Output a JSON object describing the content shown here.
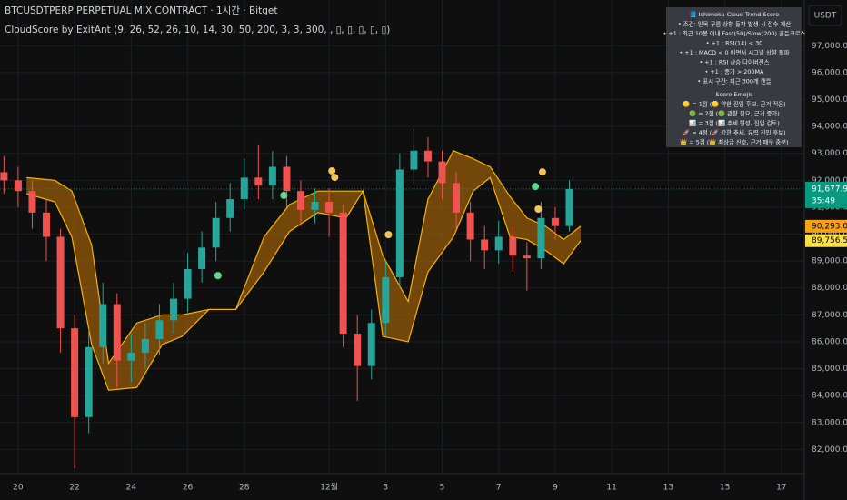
{
  "header": {
    "symbol_line": "BTCUSDTPERP PERPETUAL MIX CONTRACT · 1시간 · Bitget",
    "indicator_line": "CloudScore by ExitAnt (9, 26, 52, 26, 10, 14, 30, 50, 200, 3, 3, 300,  , ▯, ▯, ▯, ▯, ▯)"
  },
  "info_box": {
    "title": "📘 Ichimoku Cloud Trend Score",
    "lines": [
      "• 조건: 일목 구름 상향 돌파 발생 시 점수 계산",
      "• +1 : 최근 10봉 이내 Fast(50)/Slow(200) 골든크로스",
      "• +1 : RSI(14) < 30",
      "• +1 : MACD < 0 이면서 시그널 상향 돌파",
      "• +1 : RSI 상승 다이버전스",
      "• +1 : 종가 > 200MA",
      "• 표시 구간: 최근 300개 캔들"
    ],
    "emoji_title": "Score Emojis",
    "emoji_lines": [
      "🟡 = 1점 (🟡 약한 진입 후보, 근거 적음)",
      "🟢 = 2점 (🟢 관찰 필요, 근거 증가)",
      "📊 = 3점 (📊 추세 형성, 진입 검토)",
      "🚀 = 4점 (🚀 강한 추세, 유력 진입 후보)",
      "👑 = 5점 (👑 최상급 신호, 근거 매우 충분)"
    ]
  },
  "price_axis": {
    "currency": "USDT",
    "last_price": {
      "value": 91677.9,
      "label": "91,677.9",
      "color": "#089981"
    },
    "countdown": "35:49",
    "cloud_labels": [
      {
        "value": 90293.0,
        "label": "90,293.0",
        "color": "#f7a21b"
      },
      {
        "value": 89756.5,
        "label": "89,756.5",
        "color": "#fde047"
      }
    ]
  },
  "chart_data": {
    "type": "candlestick",
    "x": [
      -0.5,
      0,
      0.5,
      1,
      1.5,
      2,
      2.5,
      3,
      3.5,
      4,
      4.5,
      5,
      5.5,
      6,
      6.5,
      7,
      7.5,
      8,
      8.5,
      9,
      9.5,
      10,
      10.5,
      11,
      11.5,
      12,
      12.5,
      13,
      13.5,
      14,
      14.5,
      15,
      15.5,
      16,
      16.5,
      17,
      17.5,
      18,
      18.5,
      19,
      19.5
    ],
    "open": [
      92300,
      92000,
      91600,
      90800,
      89900,
      86500,
      83200,
      85800,
      87400,
      85300,
      85600,
      86100,
      86800,
      87600,
      88700,
      89500,
      90600,
      91300,
      92100,
      91800,
      92500,
      91600,
      90900,
      91200,
      90800,
      86300,
      85100,
      86700,
      88400,
      92400,
      93100,
      92700,
      91900,
      90800,
      89800,
      89400,
      89900,
      89200,
      89100,
      90600,
      90300
    ],
    "high": [
      92900,
      92500,
      92000,
      91300,
      90200,
      87000,
      86500,
      88200,
      87800,
      86300,
      86700,
      87400,
      88200,
      89300,
      90100,
      91200,
      91900,
      92800,
      93300,
      93100,
      92900,
      92000,
      91700,
      91700,
      91100,
      87000,
      87200,
      89000,
      93000,
      93900,
      93600,
      93100,
      92300,
      91200,
      90300,
      90500,
      90300,
      89700,
      91200,
      91000,
      92000
    ],
    "low": [
      91500,
      91000,
      90200,
      89000,
      85600,
      81300,
      82600,
      85200,
      84300,
      84500,
      85000,
      85500,
      86300,
      87100,
      88200,
      89000,
      90100,
      90900,
      91300,
      91300,
      91000,
      90300,
      90400,
      89900,
      85800,
      83800,
      84600,
      86200,
      88000,
      91900,
      92100,
      91300,
      90200,
      89000,
      88700,
      88900,
      88600,
      87900,
      88700,
      89800,
      90100
    ],
    "close": [
      92000,
      91600,
      90800,
      89900,
      86500,
      83200,
      85800,
      87400,
      85300,
      85600,
      86100,
      86800,
      87600,
      88700,
      89500,
      90600,
      91300,
      92100,
      91800,
      92500,
      91600,
      90900,
      91200,
      90800,
      86300,
      85100,
      86700,
      88400,
      92400,
      93100,
      92700,
      91900,
      90800,
      89800,
      89400,
      89900,
      89200,
      89100,
      90600,
      90300,
      91677.9
    ],
    "up_color": "#26a69a",
    "down_color": "#ef5350",
    "cloud": {
      "x": [
        0.3,
        1.3,
        1.9,
        2.6,
        3.2,
        4.2,
        5.1,
        5.8,
        6.75,
        7.7,
        8.7,
        9.6,
        10.6,
        11.6,
        12.2,
        12.9,
        13.8,
        14.5,
        15.4,
        16.1,
        16.7,
        17.4,
        18,
        18.65,
        19.3,
        19.9
      ],
      "span_a": [
        92100,
        92000,
        91600,
        89600,
        85200,
        86700,
        87000,
        87000,
        87200,
        87200,
        89900,
        91100,
        91600,
        91600,
        91600,
        89200,
        87500,
        91300,
        93100,
        92800,
        92500,
        91400,
        90600,
        90300,
        89800,
        90293
      ],
      "span_b": [
        91500,
        91200,
        89900,
        85900,
        84200,
        84300,
        85900,
        86200,
        87200,
        87200,
        88600,
        90100,
        90800,
        90600,
        91600,
        86200,
        86000,
        88600,
        89900,
        91600,
        92100,
        89900,
        89800,
        89400,
        88900,
        89756.5
      ],
      "line_color": "#f5b301",
      "fill_color": "rgba(176,106,6,0.62)"
    },
    "markers": {
      "x": [
        7.07,
        9.4,
        11.1,
        11.2,
        13.1,
        18.3,
        18.4,
        18.55
      ],
      "values": [
        88460,
        91440,
        92350,
        92110,
        89980,
        91770,
        90930,
        92310
      ],
      "colors": [
        "#5fd68e",
        "#5fd68e",
        "#f2c45a",
        "#f2c45a",
        "#f2c45a",
        "#5fd68e",
        "#f2c45a",
        "#f2c45a"
      ]
    },
    "xlim": [
      -0.64,
      27.81
    ],
    "ylim": [
      81100,
      98700
    ],
    "xticks": [
      {
        "value": 0,
        "label": "20"
      },
      {
        "value": 2,
        "label": "22"
      },
      {
        "value": 4,
        "label": "24"
      },
      {
        "value": 6,
        "label": "26"
      },
      {
        "value": 8,
        "label": "28"
      },
      {
        "value": 11,
        "label": "12월"
      },
      {
        "value": 13,
        "label": "3"
      },
      {
        "value": 15,
        "label": "5"
      },
      {
        "value": 17,
        "label": "7"
      },
      {
        "value": 19,
        "label": "9"
      },
      {
        "value": 21,
        "label": "11"
      },
      {
        "value": 23,
        "label": "13"
      },
      {
        "value": 25,
        "label": "15"
      },
      {
        "value": 27,
        "label": "17"
      }
    ],
    "yticks": [
      {
        "value": 82000,
        "label": "82,000.0"
      },
      {
        "value": 83000,
        "label": "83,000.0"
      },
      {
        "value": 84000,
        "label": "84,000.0"
      },
      {
        "value": 85000,
        "label": "85,000.0"
      },
      {
        "value": 86000,
        "label": "86,000.0"
      },
      {
        "value": 87000,
        "label": "87,000.0"
      },
      {
        "value": 88000,
        "label": "88,000.0"
      },
      {
        "value": 89000,
        "label": "89,000.0"
      },
      {
        "value": 90000,
        "label": "90,000.0"
      },
      {
        "value": 91000,
        "label": "91,000.0"
      },
      {
        "value": 92000,
        "label": "92,000.0"
      },
      {
        "value": 93000,
        "label": "93,000.0"
      },
      {
        "value": 94000,
        "label": "94,000.0"
      },
      {
        "value": 95000,
        "label": "95,000.0"
      },
      {
        "value": 96000,
        "label": "96,000.0"
      },
      {
        "value": 97000,
        "label": "97,000.0"
      }
    ],
    "grid": true
  }
}
